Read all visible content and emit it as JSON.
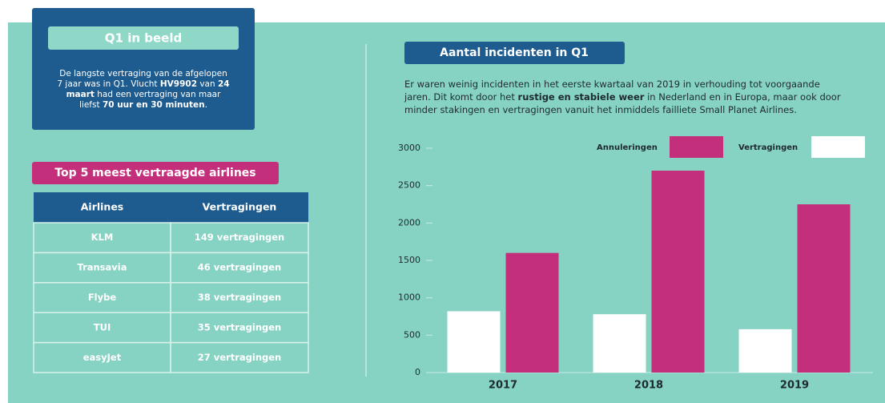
{
  "q1_box": {
    "title": "Q1 in beeld",
    "lines": [
      [
        {
          "text": "De langste vertraging van de afgelopen",
          "bold": false
        }
      ],
      [
        {
          "text": "7 jaar was in Q1. Vlucht ",
          "bold": false
        },
        {
          "text": "HV9902",
          "bold": true
        },
        {
          "text": " van ",
          "bold": false
        },
        {
          "text": "24",
          "bold": true
        }
      ],
      [
        {
          "text": "maart",
          "bold": true
        },
        {
          "text": " had een vertraging van maar",
          "bold": false
        }
      ],
      [
        {
          "text": "liefst ",
          "bold": false
        },
        {
          "text": "70 uur en 30 minuten",
          "bold": true
        },
        {
          "text": ".",
          "bold": false
        }
      ]
    ]
  },
  "table": {
    "title": "Top 5 meest vertraagde airlines",
    "header": [
      "Airlines",
      "Vertragingen"
    ],
    "rows": [
      [
        "KLM",
        "149 vertragingen"
      ],
      [
        "Transavia",
        "46 vertragingen"
      ],
      [
        "Flybe",
        "38 vertragingen"
      ],
      [
        "TUI",
        "35 vertragingen"
      ],
      [
        "easyJet",
        "27 vertragingen"
      ]
    ]
  },
  "chart_data": {
    "type": "bar",
    "title": "Aantal incidenten in Q1",
    "subtitle_lines": [
      [
        {
          "text": "Er waren weinig incidenten in het eerste kwartaal van 2019 in verhouding tot voorgaande",
          "bold": false
        }
      ],
      [
        {
          "text": "jaren. Dit komt door het ",
          "bold": false
        },
        {
          "text": "rustige en stabiele weer",
          "bold": true
        },
        {
          "text": " in Nederland en in Europa, maar ook door",
          "bold": false
        }
      ],
      [
        {
          "text": "minder stakingen en vertragingen vanuit het inmiddels failliete Small Planet Airlines.",
          "bold": false
        }
      ]
    ],
    "categories": [
      "2017",
      "2018",
      "2019"
    ],
    "series": [
      {
        "name": "Annuleringen",
        "color": "#c32f7b",
        "values": [
          1600,
          2700,
          2250
        ]
      },
      {
        "name": "Vertragingen",
        "color": "#ffffff",
        "values": [
          820,
          780,
          580
        ]
      }
    ],
    "ylim": [
      0,
      3000
    ],
    "yticks": [
      0,
      500,
      1000,
      1500,
      2000,
      2500,
      3000
    ],
    "legend": "top-right"
  }
}
